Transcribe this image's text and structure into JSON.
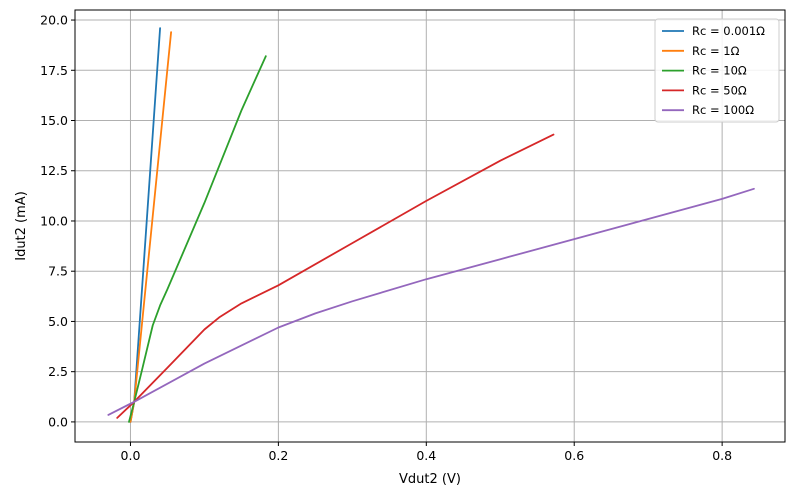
{
  "chart_data": {
    "type": "line",
    "title": "",
    "xlabel": "Vdut2 (V)",
    "ylabel": "Idut2 (mA)",
    "xlim": [
      -0.075,
      0.885
    ],
    "ylim": [
      -1.0,
      20.5
    ],
    "xticks": [
      0.0,
      0.2,
      0.4,
      0.6,
      0.8
    ],
    "xtick_labels": [
      "0.0",
      "0.2",
      "0.4",
      "0.6",
      "0.8"
    ],
    "yticks": [
      0.0,
      2.5,
      5.0,
      7.5,
      10.0,
      12.5,
      15.0,
      17.5,
      20.0
    ],
    "ytick_labels": [
      "0.0",
      "2.5",
      "5.0",
      "7.5",
      "10.0",
      "12.5",
      "15.0",
      "17.5",
      "20.0"
    ],
    "grid": true,
    "legend_position": "top-right",
    "series": [
      {
        "name": "Rc = 0.001Ω",
        "color": "#1f77b4",
        "x": [
          0.0,
          0.005,
          0.04
        ],
        "y": [
          0.0,
          1.0,
          19.6
        ]
      },
      {
        "name": "Rc = 1Ω",
        "color": "#ff7f0e",
        "x": [
          0.0,
          0.005,
          0.055
        ],
        "y": [
          0.0,
          1.0,
          19.4
        ]
      },
      {
        "name": "Rc = 10Ω",
        "color": "#2ca02c",
        "x": [
          -0.002,
          0.005,
          0.015,
          0.03,
          0.04,
          0.05,
          0.1,
          0.15,
          0.183
        ],
        "y": [
          0.0,
          1.0,
          2.5,
          4.8,
          5.8,
          6.6,
          10.9,
          15.5,
          18.2
        ]
      },
      {
        "name": "Rc = 50Ω",
        "color": "#d62728",
        "x": [
          -0.018,
          0.005,
          0.05,
          0.1,
          0.12,
          0.15,
          0.2,
          0.3,
          0.4,
          0.5,
          0.572
        ],
        "y": [
          0.2,
          1.0,
          2.7,
          4.6,
          5.2,
          5.9,
          6.8,
          8.9,
          11.0,
          13.0,
          14.3
        ]
      },
      {
        "name": "Rc = 100Ω",
        "color": "#9467bd",
        "x": [
          -0.03,
          0.005,
          0.1,
          0.2,
          0.25,
          0.3,
          0.4,
          0.5,
          0.6,
          0.7,
          0.8,
          0.843
        ],
        "y": [
          0.35,
          1.0,
          2.9,
          4.7,
          5.4,
          6.0,
          7.1,
          8.1,
          9.1,
          10.1,
          11.1,
          11.6
        ]
      }
    ]
  }
}
